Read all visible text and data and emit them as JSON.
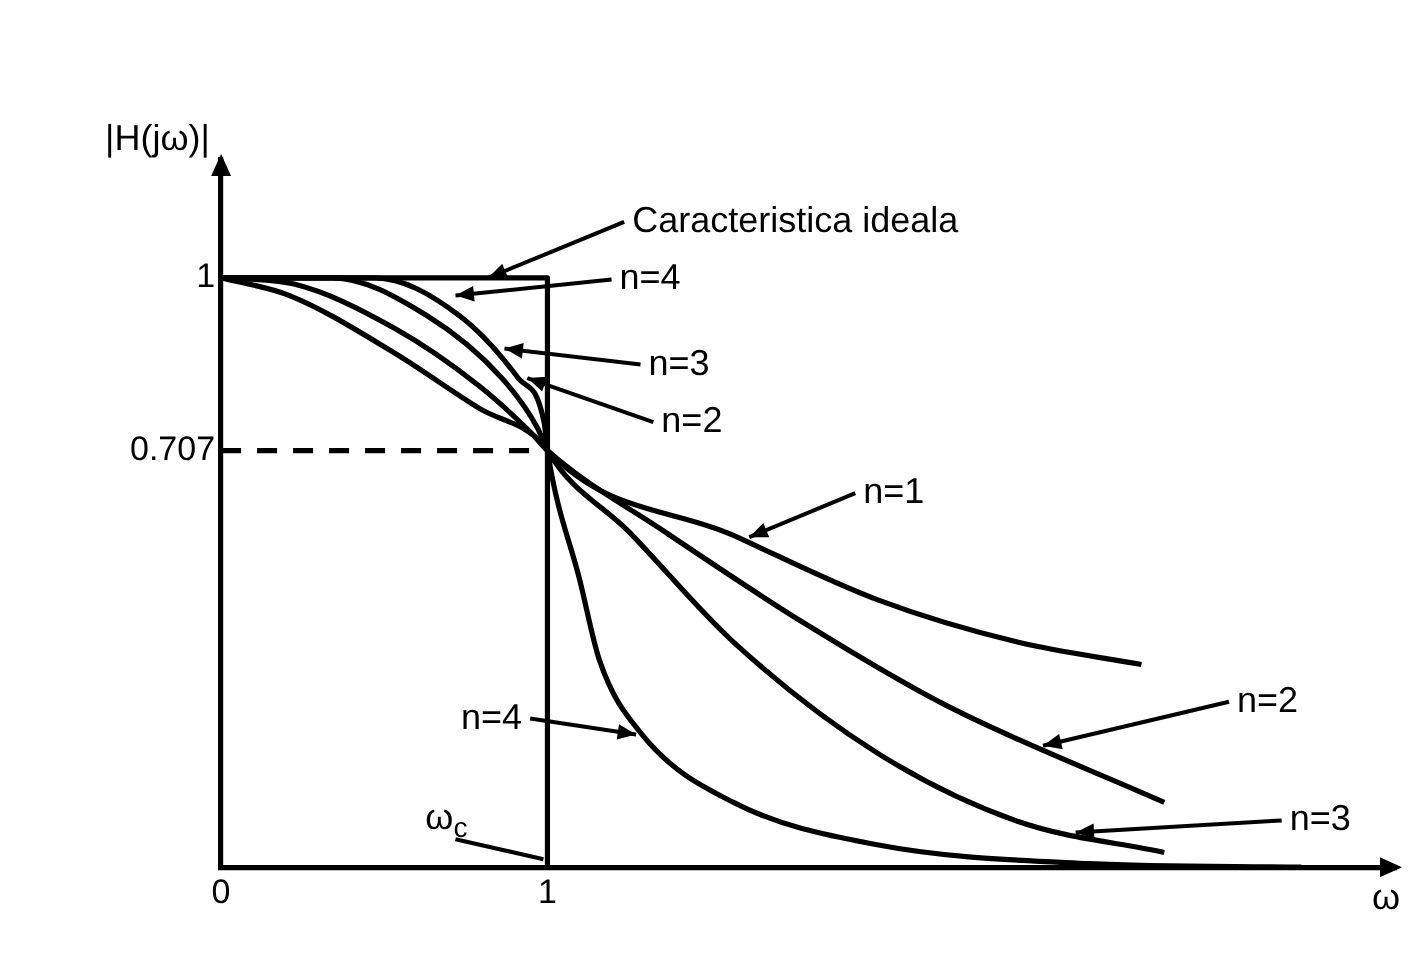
{
  "chart_data": {
    "type": "line",
    "xlabel": "ω",
    "ylabel": "|H(jω)|",
    "xlim": [
      0,
      3.6
    ],
    "ylim": [
      0,
      1.2
    ],
    "xticks": [
      0,
      1
    ],
    "yticks": [
      0.707,
      1
    ],
    "grid": false,
    "legend": false,
    "marker": "none",
    "series": [
      {
        "color": "#000000",
        "x": [
          0,
          1,
          1
        ],
        "values": [
          1,
          1,
          0
        ]
      },
      {
        "color": "#000000",
        "line_style": "dashed",
        "x": [
          0,
          1
        ],
        "values": [
          0.707,
          0.707
        ]
      },
      {
        "color": "#000000",
        "x": [
          0,
          0.21,
          0.53,
          0.79,
          0.99,
          1,
          1.57,
          2.01,
          2.44,
          2.82
        ],
        "values": [
          1,
          0.97,
          0.873,
          0.779,
          0.716,
          0.707,
          0.563,
          0.454,
          0.382,
          0.344
        ]
      },
      {
        "color": "#000000",
        "x": [
          0,
          0.22,
          0.53,
          0.79,
          0.95,
          1,
          1.36,
          1.79,
          2.22,
          2.89
        ],
        "values": [
          1,
          0.99,
          0.915,
          0.817,
          0.737,
          0.707,
          0.569,
          0.413,
          0.275,
          0.11
        ]
      },
      {
        "color": "#000000",
        "x": [
          0,
          0.34,
          0.63,
          0.86,
          0.97,
          1,
          1.25,
          1.57,
          2.01,
          2.44,
          2.89
        ],
        "values": [
          1,
          1,
          0.936,
          0.83,
          0.745,
          0.707,
          0.569,
          0.382,
          0.194,
          0.078,
          0.025
        ]
      },
      {
        "color": "#000000",
        "x": [
          0,
          0.47,
          0.73,
          0.91,
          0.99,
          1,
          1.1,
          1.16,
          1.29,
          1.57,
          2.01,
          2.66,
          3.31
        ],
        "values": [
          1,
          1,
          0.936,
          0.83,
          0.754,
          0.707,
          0.485,
          0.35,
          0.225,
          0.11,
          0.038,
          0.006,
          0
        ]
      }
    ],
    "annotations": [
      {
        "text": "Caracteristica ideala",
        "x": 0.8,
        "y": 1
      },
      {
        "text": "n=4",
        "x": 0.7,
        "y": 0.97
      },
      {
        "text": "n=3",
        "x": 0.85,
        "y": 0.88
      },
      {
        "text": "n=2",
        "x": 0.92,
        "y": 0.83
      },
      {
        "text": "n=1",
        "x": 1.6,
        "y": 0.56
      },
      {
        "text": "n=4",
        "x": 1.29,
        "y": 0.225
      },
      {
        "text": "n=2",
        "x": 2.5,
        "y": 0.206
      },
      {
        "text": "n=3",
        "x": 2.6,
        "y": 0.059
      },
      {
        "text": "ω$_{c}$",
        "x": 1,
        "y": 0
      }
    ]
  }
}
